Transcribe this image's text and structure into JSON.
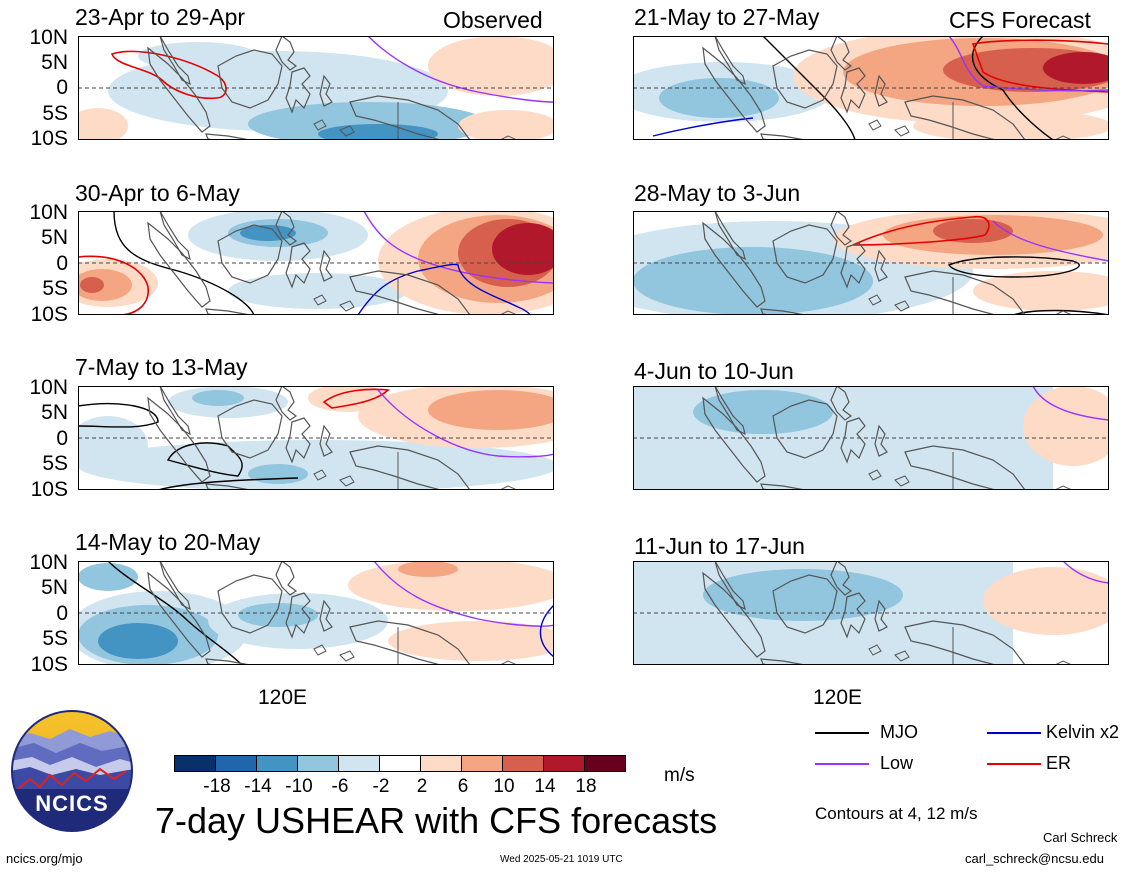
{
  "headers": {
    "left": "Observed",
    "right": "CFS Forecast"
  },
  "panels_observed": [
    {
      "title": "23-Apr to 29-Apr"
    },
    {
      "title": "30-Apr to 6-May"
    },
    {
      "title": "7-May to 13-May"
    },
    {
      "title": "14-May to 20-May"
    }
  ],
  "panels_forecast": [
    {
      "title": "21-May to 27-May"
    },
    {
      "title": "28-May to 3-Jun"
    },
    {
      "title": "4-Jun to 10-Jun"
    },
    {
      "title": "11-Jun to 17-Jun"
    }
  ],
  "lat_ticks": [
    "10N",
    "5N",
    "0",
    "5S",
    "10S"
  ],
  "lon_tick": "120E",
  "colorbar": {
    "labels": [
      "-18",
      "-14",
      "-10",
      "-6",
      "-2",
      "2",
      "6",
      "10",
      "14",
      "18"
    ],
    "colors": [
      "#08306b",
      "#2166ac",
      "#4393c3",
      "#92c5de",
      "#d1e5f0",
      "#ffffff",
      "#fddbc7",
      "#f4a582",
      "#d6604d",
      "#b2182b",
      "#67001f"
    ],
    "unit": "m/s"
  },
  "legend": {
    "items": [
      {
        "label": "MJO",
        "color": "#000000"
      },
      {
        "label": "Kelvin x2",
        "color": "#0000cc"
      },
      {
        "label": "Low",
        "color": "#9933ff"
      },
      {
        "label": "ER",
        "color": "#e60000"
      }
    ],
    "contours_note": "Contours at 4, 12 m/s"
  },
  "logo": {
    "text": "NCICS"
  },
  "main_title": "7-day USHEAR with CFS forecasts",
  "footer": {
    "left": "ncics.org/mjo",
    "center": "Wed 2025-05-21 1019 UTC",
    "right_name": "Carl Schreck",
    "right_email": "carl_schreck@ncsu.edu"
  }
}
